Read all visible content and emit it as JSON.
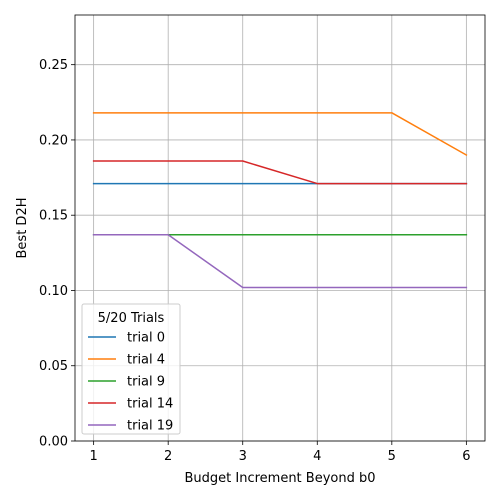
{
  "chart_data": {
    "type": "line",
    "title": "",
    "xlabel": "Budget Increment Beyond b0",
    "ylabel": "Best D2H",
    "x": [
      1,
      2,
      3,
      4,
      5,
      6
    ],
    "xlim": [
      0.75,
      6.25
    ],
    "ylim": [
      0,
      0.283
    ],
    "xticks": [
      1,
      2,
      3,
      4,
      5,
      6
    ],
    "yticks": [
      0.0,
      0.05,
      0.1,
      0.15,
      0.2,
      0.25
    ],
    "xtick_labels": [
      "1",
      "2",
      "3",
      "4",
      "5",
      "6"
    ],
    "ytick_labels": [
      "0.00",
      "0.05",
      "0.10",
      "0.15",
      "0.20",
      "0.25"
    ],
    "grid": true,
    "legend": {
      "title": "5/20 Trials",
      "placement": "lower-left"
    },
    "series": [
      {
        "name": "trial 0",
        "color": "#1f77b4",
        "values": [
          0.171,
          0.171,
          0.171,
          0.171,
          0.171,
          0.171
        ]
      },
      {
        "name": "trial 4",
        "color": "#ff7f0e",
        "values": [
          0.218,
          0.218,
          0.218,
          0.218,
          0.218,
          0.19
        ]
      },
      {
        "name": "trial 9",
        "color": "#2ca02c",
        "values": [
          0.137,
          0.137,
          0.137,
          0.137,
          0.137,
          0.137
        ]
      },
      {
        "name": "trial 14",
        "color": "#d62728",
        "values": [
          0.186,
          0.186,
          0.186,
          0.171,
          0.171,
          0.171
        ]
      },
      {
        "name": "trial 19",
        "color": "#9467bd",
        "values": [
          0.137,
          0.137,
          0.102,
          0.102,
          0.102,
          0.102
        ]
      }
    ]
  }
}
